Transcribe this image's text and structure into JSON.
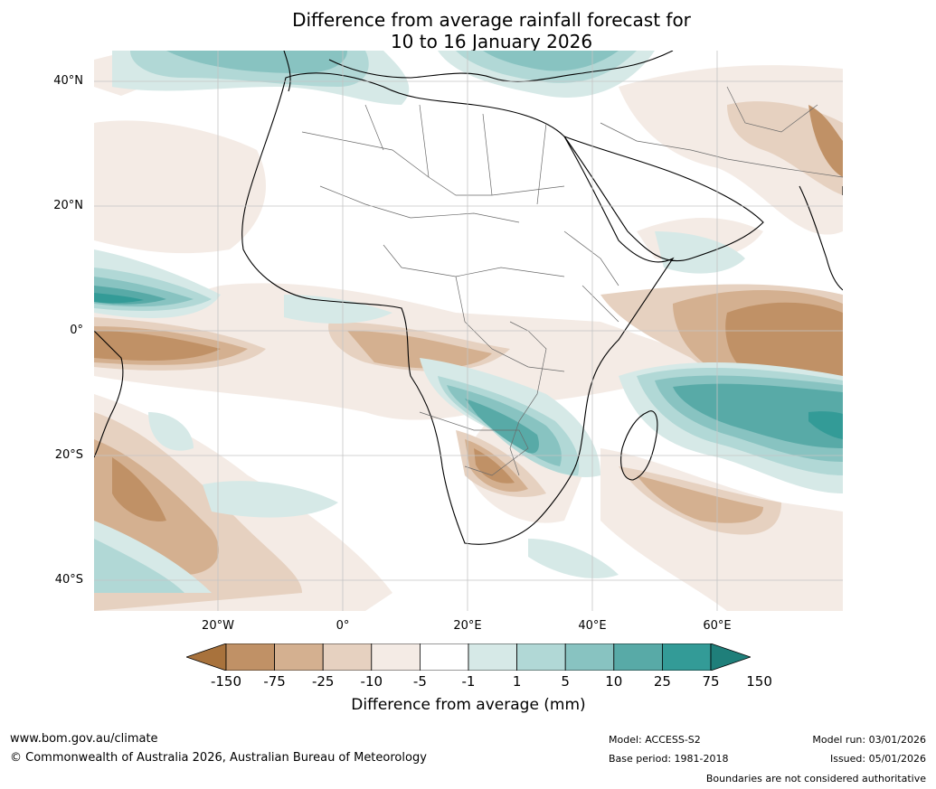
{
  "title": {
    "line1": "Difference from average rainfall forecast for",
    "line2": "10 to 16 January 2026"
  },
  "axes": {
    "lat_labels": [
      "40°N",
      "20°N",
      "0°",
      "20°S",
      "40°S"
    ],
    "lon_labels": [
      "20°W",
      "0°",
      "20°E",
      "40°E",
      "60°E"
    ]
  },
  "legend": {
    "title": "Difference from average (mm)",
    "ticks": [
      "-150",
      "-75",
      "-25",
      "-10",
      "-5",
      "-1",
      "1",
      "5",
      "10",
      "25",
      "75",
      "150"
    ],
    "colors": [
      "#a8723c",
      "#c09166",
      "#d4b090",
      "#e6d1c0",
      "#f4ebe5",
      "#ffffff",
      "#d6e9e7",
      "#b1d8d6",
      "#88c3c1",
      "#58aaa7",
      "#339b97",
      "#1f7f7a"
    ]
  },
  "footer": {
    "website": "www.bom.gov.au/climate",
    "copyright": "© Commonwealth of Australia 2026, Australian Bureau of Meteorology",
    "model": "Model: ACCESS-S2",
    "base_period": "Base period: 1981-2018",
    "model_run": "Model run: 03/01/2026",
    "issued": "Issued: 05/01/2026",
    "disclaimer": "Boundaries are not considered authoritative"
  }
}
